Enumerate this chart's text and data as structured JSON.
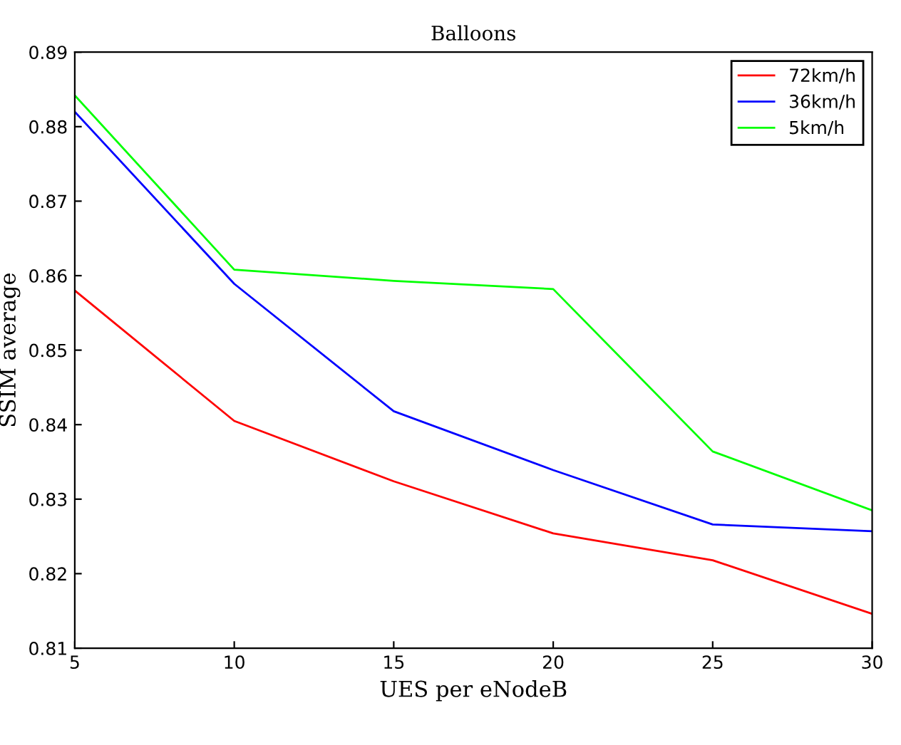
{
  "chart_data": {
    "type": "line",
    "title": "Balloons",
    "xlabel": "UES per eNodeB",
    "ylabel": "SSIM average",
    "x": [
      5,
      10,
      15,
      20,
      25,
      30
    ],
    "series": [
      {
        "name": "72km/h",
        "color": "#ff0000",
        "values": [
          0.858,
          0.8405,
          0.8324,
          0.8254,
          0.8218,
          0.8146
        ]
      },
      {
        "name": "36km/h",
        "color": "#0000ff",
        "values": [
          0.882,
          0.8589,
          0.8418,
          0.8339,
          0.8266,
          0.8257
        ]
      },
      {
        "name": "5km/h",
        "color": "#00ff00",
        "values": [
          0.8842,
          0.8608,
          0.8593,
          0.8582,
          0.8364,
          0.8285
        ]
      }
    ],
    "xlim": [
      5,
      30
    ],
    "xticks": [
      5,
      10,
      15,
      20,
      25,
      30
    ],
    "ylim": [
      0.81,
      0.89
    ],
    "yticks": [
      0.81,
      0.82,
      0.83,
      0.84,
      0.85,
      0.86,
      0.87,
      0.88,
      0.89
    ],
    "grid": false,
    "legend": "top right",
    "marker": "none",
    "line_style": "solid"
  }
}
